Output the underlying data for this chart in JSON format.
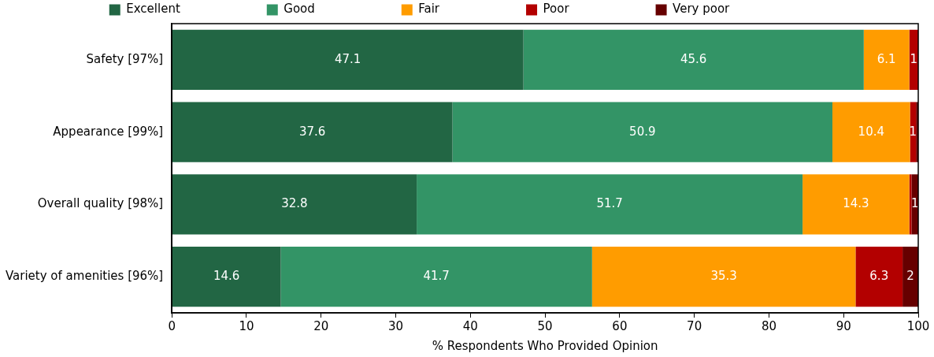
{
  "chart_data": {
    "type": "bar",
    "orientation": "horizontal",
    "stacked": true,
    "xlabel": "% Respondents Who Provided Opinion",
    "categories": [
      "Safety [97%]",
      "Appearance [99%]",
      "Overall quality [98%]",
      "Variety of amenities [96%]"
    ],
    "xlim": [
      0,
      100
    ],
    "xticks": [
      0,
      10,
      20,
      30,
      40,
      50,
      60,
      70,
      80,
      90,
      100
    ],
    "grid": false,
    "legend": "top",
    "series": [
      {
        "name": "Excellent",
        "color": "#226644",
        "values": [
          47.1,
          37.6,
          32.8,
          14.6
        ],
        "value_labels": [
          "47.1",
          "37.6",
          "32.8",
          "14.6"
        ]
      },
      {
        "name": "Good",
        "color": "#339466",
        "values": [
          45.6,
          50.9,
          51.7,
          41.7
        ],
        "value_labels": [
          "45.6",
          "50.9",
          "51.7",
          "41.7"
        ]
      },
      {
        "name": "Fair",
        "color": "#ff9c00",
        "values": [
          6.1,
          10.4,
          14.3,
          35.3
        ],
        "value_labels": [
          "6.1",
          "10.4",
          "14.3",
          "35.3"
        ]
      },
      {
        "name": "Poor",
        "color": "#b30000",
        "values": [
          1.2,
          0.8,
          0.3,
          6.3
        ],
        "value_labels": [
          "1",
          "1",
          null,
          "6.3"
        ]
      },
      {
        "name": "Very poor",
        "color": "#660000",
        "values": [
          0,
          0.3,
          0.9,
          2.1
        ],
        "value_labels": [
          null,
          null,
          "1",
          "2"
        ]
      }
    ]
  }
}
